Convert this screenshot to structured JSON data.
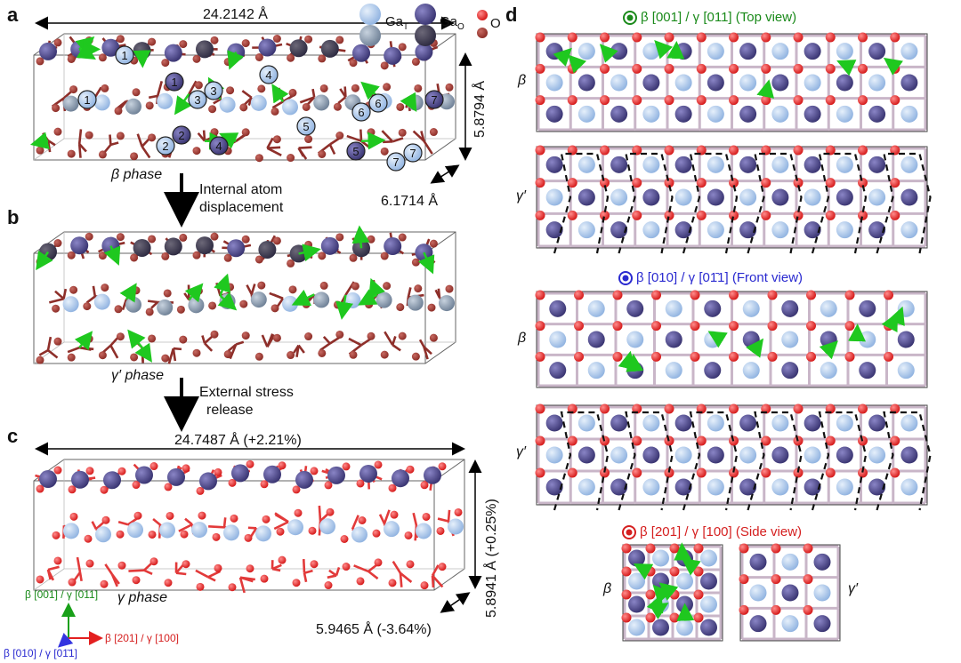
{
  "panel_labels": {
    "a": "a",
    "b": "b",
    "c": "c",
    "d": "d"
  },
  "legend": {
    "ga_t": "GaT",
    "ga_o": "GaO",
    "o": "O"
  },
  "panel_a": {
    "length_x": "24.2142 Å",
    "length_z": "5.8794 Å",
    "length_y": "6.1714 Å",
    "phase": "β phase",
    "atom_indices": [
      "1",
      "1",
      "1",
      "2",
      "2",
      "3",
      "3",
      "4",
      "4",
      "5",
      "5",
      "6",
      "6",
      "7",
      "7",
      "7"
    ]
  },
  "transition_1": {
    "line1": "Internal atom",
    "line2": "displacement"
  },
  "panel_b": {
    "phase": "γ′ phase"
  },
  "transition_2": {
    "line1": "External stress",
    "line2": "release"
  },
  "panel_c": {
    "length_x": "24.7487 Å (+2.21%)",
    "length_z": "5.8941 Å (+0.25%)",
    "length_y": "5.9465 Å (-3.64%)",
    "phase": "γ phase",
    "axis_green": "β [001] / γ [011]",
    "axis_red": "β [201] / γ [100]",
    "axis_blue": "β [010] / γ [01̄1]"
  },
  "panel_d": {
    "top_view": "β [001] / γ [011] (Top view)",
    "front_view": "β [010] / γ [01̄1] (Front view)",
    "side_view": "β [201] / γ [100] (Side view)",
    "beta": "β",
    "gamma_prime": "γ′"
  },
  "colors": {
    "ga_t": "#a9c6ea",
    "ga_o": "#4a4585",
    "o": "#e8282a",
    "displacement": "#22d022",
    "bond_o": "#a8352f"
  }
}
